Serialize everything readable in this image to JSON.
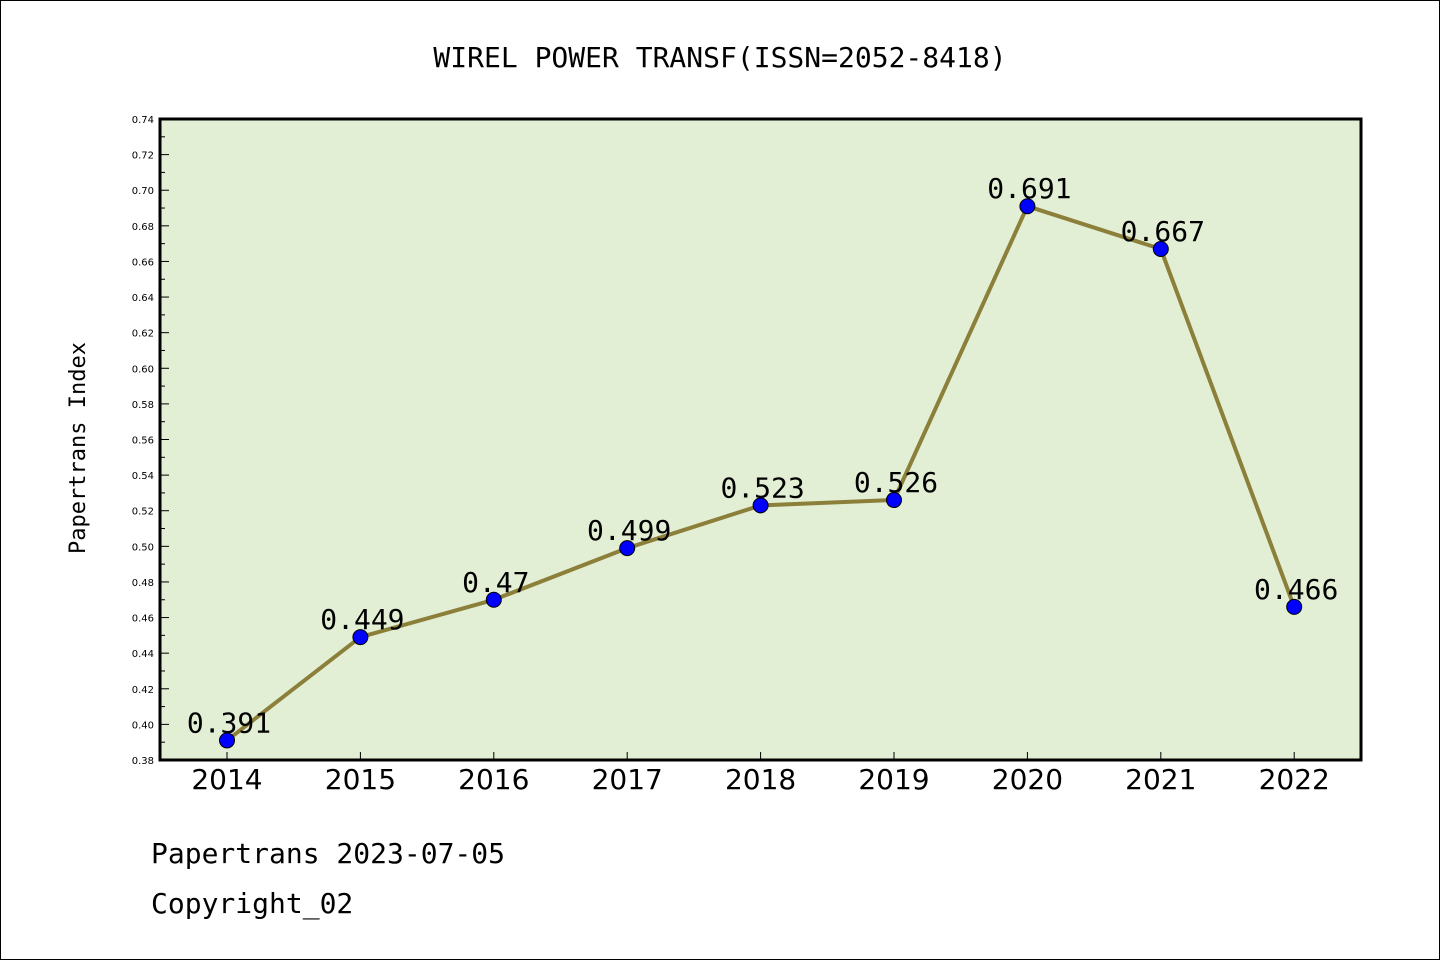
{
  "chart_data": {
    "type": "line",
    "title": "WIREL POWER TRANSF(ISSN=2052-8418)",
    "xlabel": "",
    "ylabel": "Papertrans Index",
    "categories": [
      "2014",
      "2015",
      "2016",
      "2017",
      "2018",
      "2019",
      "2020",
      "2021",
      "2022"
    ],
    "values": [
      0.391,
      0.449,
      0.47,
      0.499,
      0.523,
      0.526,
      0.691,
      0.667,
      0.466
    ],
    "value_labels": [
      "0.391",
      "0.449",
      "0.47",
      "0.499",
      "0.523",
      "0.526",
      "0.691",
      "0.667",
      "0.466"
    ],
    "ylim": [
      0.38,
      0.74
    ],
    "yticks": [
      "0.38",
      "0.40",
      "0.42",
      "0.44",
      "0.46",
      "0.48",
      "0.50",
      "0.52",
      "0.54",
      "0.56",
      "0.58",
      "0.60",
      "0.62",
      "0.64",
      "0.66",
      "0.68",
      "0.70",
      "0.72",
      "0.74"
    ],
    "grid": false,
    "colors": {
      "plot_background": "#e2efd4",
      "line": "#8b7f3a",
      "marker": "#0000ff"
    }
  },
  "footer": {
    "line1": "Papertrans 2023-07-05",
    "line2": "Copyright_02"
  }
}
